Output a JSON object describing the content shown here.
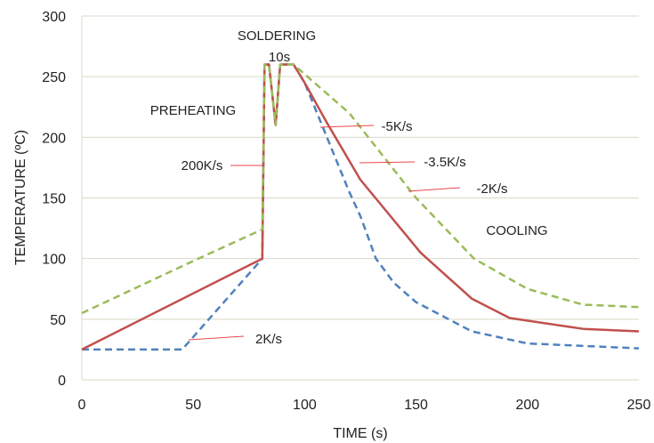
{
  "chart_data": {
    "type": "line",
    "xlabel": "TIME (s)",
    "ylabel": "TEMPERATURE (ºC)",
    "xlim": [
      0,
      250
    ],
    "ylim": [
      0,
      300
    ],
    "xticks": [
      0,
      50,
      100,
      150,
      200,
      250
    ],
    "yticks": [
      0,
      50,
      100,
      150,
      200,
      250,
      300
    ],
    "grid": "horizontal",
    "series": [
      {
        "color": "#4f81bd",
        "dash": "dashed",
        "points": [
          [
            0,
            25
          ],
          [
            45,
            25
          ],
          [
            81,
            100
          ],
          [
            82,
            260
          ],
          [
            84,
            260
          ],
          [
            87,
            210
          ],
          [
            89,
            260
          ],
          [
            95,
            260
          ],
          [
            100,
            245
          ],
          [
            110,
            200
          ],
          [
            120,
            155
          ],
          [
            125,
            135
          ],
          [
            132,
            100
          ],
          [
            140,
            80
          ],
          [
            150,
            64
          ],
          [
            175,
            40
          ],
          [
            200,
            30
          ],
          [
            250,
            26
          ]
        ]
      },
      {
        "color": "#c0504d",
        "dash": "solid",
        "points": [
          [
            0,
            25
          ],
          [
            81,
            100
          ],
          [
            82,
            260
          ],
          [
            84,
            260
          ],
          [
            87,
            210
          ],
          [
            89,
            260
          ],
          [
            95,
            260
          ],
          [
            100,
            245
          ],
          [
            110,
            212
          ],
          [
            125,
            165
          ],
          [
            152,
            105
          ],
          [
            175,
            67
          ],
          [
            192,
            51
          ],
          [
            225,
            42
          ],
          [
            250,
            40
          ]
        ]
      },
      {
        "color": "#9bbb59",
        "dash": "dashed",
        "points": [
          [
            0,
            55
          ],
          [
            50,
            98
          ],
          [
            81,
            124
          ],
          [
            82,
            260
          ],
          [
            84,
            260
          ],
          [
            87,
            210
          ],
          [
            89,
            260
          ],
          [
            95,
            260
          ],
          [
            120,
            220
          ],
          [
            150,
            150
          ],
          [
            176,
            100
          ],
          [
            200,
            75
          ],
          [
            225,
            62
          ],
          [
            250,
            60
          ]
        ]
      }
    ],
    "annotations": [
      {
        "text": "SOLDERING"
      },
      {
        "text": "10s"
      },
      {
        "text": "PREHEATING"
      },
      {
        "text": "COOLING"
      },
      {
        "text": "200K/s"
      },
      {
        "text": "2K/s"
      },
      {
        "text": "-5K/s"
      },
      {
        "text": "-3.5K/s"
      },
      {
        "text": "-2K/s"
      }
    ],
    "pointer_color": "#e8474c"
  }
}
